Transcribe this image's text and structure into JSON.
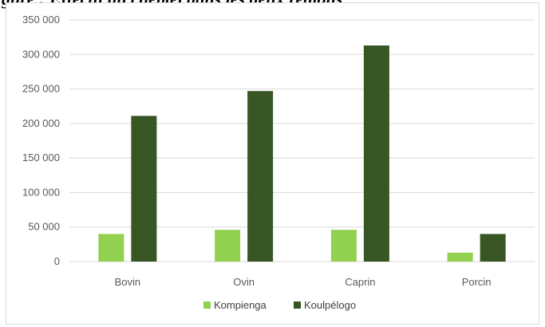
{
  "caption_fragment": "gure  : Effectif du cheptel dans les deux regions",
  "colors": {
    "Kompienga": "#92d050",
    "Koulpélogo": "#375623",
    "grid": "#d9d9d9"
  },
  "chart_data": {
    "type": "bar",
    "categories": [
      "Bovin",
      "Ovin",
      "Caprin",
      "Porcin"
    ],
    "series": [
      {
        "name": "Kompienga",
        "values": [
          40000,
          46000,
          46000,
          13000
        ]
      },
      {
        "name": "Koulpélogo",
        "values": [
          211000,
          247000,
          313000,
          40000
        ]
      }
    ],
    "ylim": [
      0,
      350000
    ],
    "yticks": [
      "0",
      "50 000",
      "100 000",
      "150 000",
      "200 000",
      "250 000",
      "300 000",
      "350 000"
    ],
    "grid": true,
    "legend": "bottom"
  }
}
